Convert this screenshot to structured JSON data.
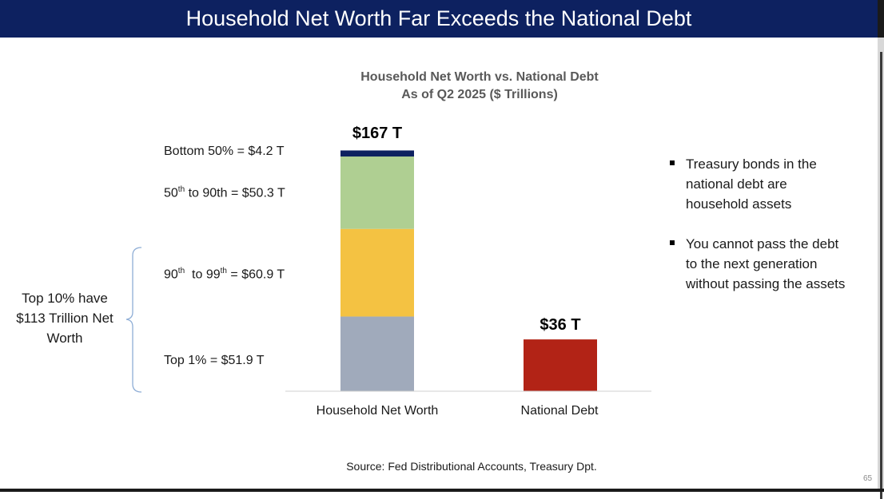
{
  "slide": {
    "title": "Household Net Worth Far Exceeds the National Debt",
    "source": "Source:  Fed Distributional Accounts, Treasury Dpt.",
    "page_number": "65",
    "bracket_label": "Top 10% have $113 Trillion Net Worth",
    "bullets": [
      "Treasury bonds in the national debt are household assets",
      "You cannot pass the debt to the next generation without passing the assets"
    ]
  },
  "chart_data": {
    "type": "bar",
    "title": "Household Net Worth vs. National Debt",
    "subtitle": "As of Q2 2025 ($ Trillions)",
    "categories": [
      "Household Net Worth",
      "National Debt"
    ],
    "ylim": [
      0,
      167
    ],
    "grid": false,
    "stacked": true,
    "segments": [
      {
        "key": "top1",
        "label_parts": [
          "Top 1% = $51.9 T"
        ],
        "value": 51.9,
        "color": "#a0aabb"
      },
      {
        "key": "p90_99",
        "label_parts": [
          "90",
          "th",
          "  to 99",
          "th",
          " = $60.9 T"
        ],
        "value": 60.9,
        "color": "#f4c242"
      },
      {
        "key": "p50_90",
        "label_parts": [
          "50",
          "th",
          " to 90th = $50.3 T"
        ],
        "value": 50.3,
        "color": "#afcf92"
      },
      {
        "key": "bottom50",
        "label_parts": [
          "Bottom 50% = $4.2 T"
        ],
        "value": 4.2,
        "color": "#0d2160"
      }
    ],
    "series": [
      {
        "values": [
          167,
          36
        ]
      }
    ],
    "bar_labels": [
      "$167 T",
      "$36 T"
    ],
    "national_debt": {
      "value": 36,
      "color": "#b22316"
    }
  }
}
